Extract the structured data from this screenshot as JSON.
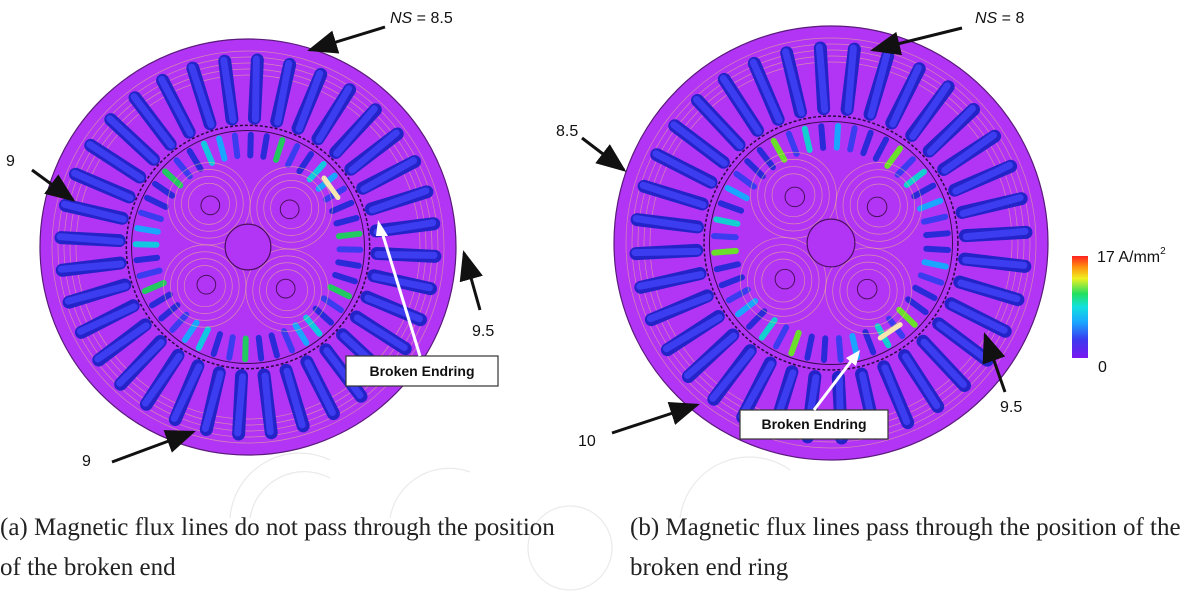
{
  "callouts": {
    "a_top_var": "NS",
    "a_top_val": " = 8.5",
    "a_left": "9",
    "a_bottom": "9",
    "a_right": "9.5",
    "b_top_var": "NS",
    "b_top_val": " = 8",
    "b_left": "8.5",
    "b_bottom": "10",
    "b_right": "9.5"
  },
  "labels": {
    "broken_a": "Broken  Endring",
    "broken_b": "Broken  Endring"
  },
  "scale": {
    "max": "17 A/mm",
    "max_sup": "2",
    "min": "0",
    "colors": [
      "#7a16f0",
      "#3b3bf0",
      "#1aa6ff",
      "#12e0e0",
      "#22e060",
      "#f0f020",
      "#ff8a10",
      "#ff2020"
    ]
  },
  "captions": {
    "a": "(a) Magnetic flux lines do not pass through the position of the broken end",
    "b": "(b) Magnetic flux lines pass through the position of the broken end ring"
  },
  "colors": {
    "stator": "#b235f5",
    "slot_dark": "#2a2ad8",
    "flux_line": "#f3c77e"
  }
}
